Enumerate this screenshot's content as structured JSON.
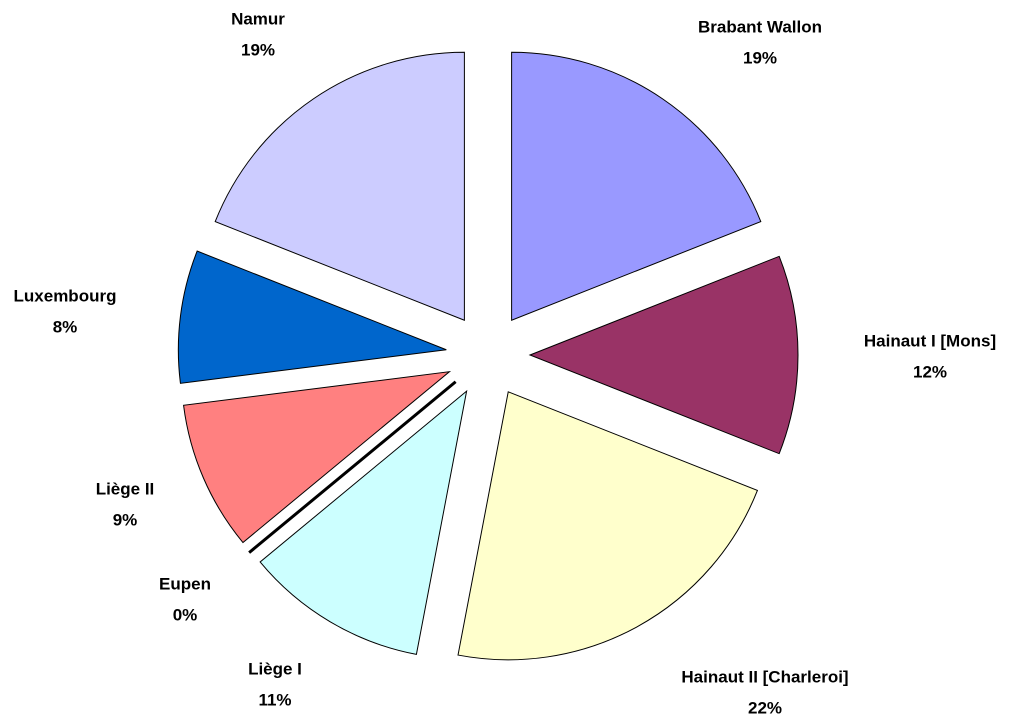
{
  "chart_data": {
    "type": "pie",
    "categories": [
      "Brabant Wallon",
      "Hainaut I [Mons]",
      "Hainaut II [Charleroi]",
      "Liège I",
      "Eupen",
      "Liège II",
      "Luxembourg",
      "Namur"
    ],
    "values": [
      19,
      12,
      22,
      11,
      0,
      9,
      8,
      19
    ],
    "value_labels": [
      "19%",
      "12%",
      "22%",
      "11%",
      "0%",
      "9%",
      "8%",
      "19%"
    ],
    "colors": [
      "#9999ff",
      "#993366",
      "#ffffcc",
      "#ccffff",
      "#660066",
      "#ff8080",
      "#0066cc",
      "#ccccff"
    ]
  }
}
